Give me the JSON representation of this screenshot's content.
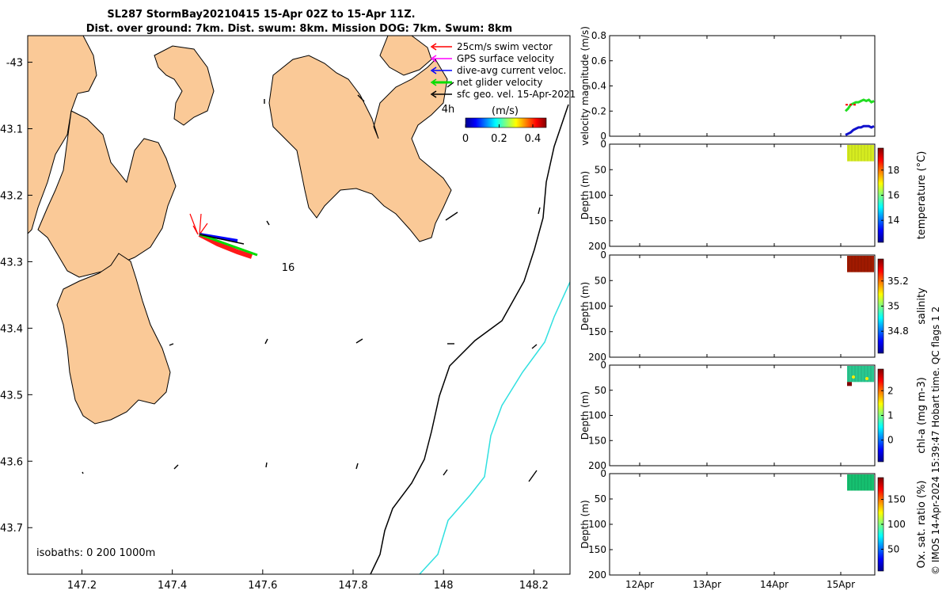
{
  "title": {
    "line1": "SL287 StormBay20210415 15-Apr 02Z to 15-Apr 11Z.",
    "line2": "Dist. over ground: 7km. Dist. swum: 8km. Mission DOG: 7km. Swum: 8km"
  },
  "map": {
    "x_ticks": [
      147.2,
      147.4,
      147.6,
      147.8,
      148,
      148.2
    ],
    "x_tick_labels": [
      "147.2",
      "147.4",
      "147.6",
      "147.8",
      "148",
      "148.2"
    ],
    "y_ticks": [
      -43,
      -43.1,
      -43.2,
      -43.3,
      -43.4,
      -43.5,
      -43.6,
      -43.7
    ],
    "y_tick_labels": [
      "-43",
      "43.1",
      "43.2",
      "43.3",
      "43.4",
      "43.5",
      "43.6",
      "43.7"
    ],
    "xlim": [
      147.08,
      148.28
    ],
    "ylim": [
      -43.77,
      -42.96
    ],
    "isobaths_label": "isobaths: 0   200  1000m",
    "annotation_16": "16",
    "annotation_4h": "4h",
    "legend": {
      "items": [
        {
          "label": "25cm/s swim vector",
          "color": "#ff0000"
        },
        {
          "label": "GPS surface velocity",
          "color": "#ff00ff"
        },
        {
          "label": "dive-avg current veloc.",
          "color": "#0000ff"
        },
        {
          "label": "net glider velocity",
          "color": "#00dd00"
        },
        {
          "label": "sfc geo. vel. 15-Apr-2021",
          "color": "#000000"
        }
      ]
    },
    "colorbar": {
      "title": "(m/s)",
      "ticks": [
        0,
        0.2,
        0.4
      ],
      "tick_labels": [
        "0",
        "0.2",
        "0.4"
      ],
      "range": [
        0,
        0.48
      ]
    },
    "colors": {
      "land": "#fac997",
      "sea": "#ffffff",
      "isobath_200": "#000000",
      "isobath_1000": "#30e0e0"
    }
  },
  "panels": {
    "x_tick_labels": [
      "12Apr",
      "13Apr",
      "14Apr",
      "15Apr"
    ],
    "velocity": {
      "ylabel": "velocity magnitude (m/s)",
      "ylim": [
        0,
        0.8
      ],
      "y_tick_labels": [
        "0",
        "0.2",
        "0.4",
        "0.6",
        "0.8"
      ],
      "series": [
        {
          "name": "net glider velocity",
          "color": "#22dd22",
          "values": [
            0.2,
            0.22,
            0.25,
            0.26,
            0.27,
            0.27,
            0.28,
            0.29,
            0.28,
            0.29,
            0.27,
            0.28
          ]
        },
        {
          "name": "dive-avg current",
          "color": "#1111cc",
          "values": [
            0.01,
            0.02,
            0.03,
            0.05,
            0.06,
            0.07,
            0.07,
            0.08,
            0.08,
            0.08,
            0.07,
            0.08
          ]
        },
        {
          "name": "GPS surface velocity",
          "color": "#ff0000",
          "values": [
            0.25,
            0.25,
            0.25,
            0.25,
            0.25
          ]
        }
      ]
    },
    "depth_y_tick_labels": [
      "0",
      "50",
      "100",
      "150",
      "200"
    ],
    "depth_ylabel": "Depth (m)",
    "temperature": {
      "label": "temperature (°C)",
      "cb_tick_labels": [
        "14",
        "16",
        "18"
      ],
      "fill": "#d6ec20"
    },
    "salinity": {
      "label": "salinity",
      "cb_tick_labels": [
        "34.8",
        "35",
        "35.2"
      ],
      "fill": "#a01a00"
    },
    "chla": {
      "label": "chl-a (mg m-3)",
      "cb_tick_labels": [
        "0",
        "1",
        "2"
      ],
      "fill": "#2ac890"
    },
    "oxygen": {
      "label": "Ox. sat. ratio (%)",
      "cb_tick_labels": [
        "50",
        "100",
        "150"
      ],
      "fill": "#16c070"
    }
  },
  "side_label": "© IMOS 14-Apr-2024 15:39:47 Hobart time. QC flags 1  2"
}
